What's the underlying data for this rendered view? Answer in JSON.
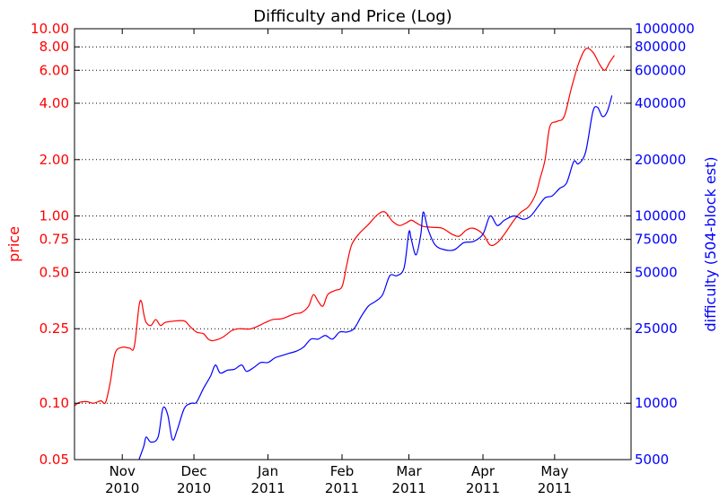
{
  "chart_data": {
    "type": "line",
    "title": "Difficulty and Price (Log)",
    "x_ticks": [
      {
        "label_top": "Nov",
        "label_bottom": "2010",
        "date": "2010-11-01"
      },
      {
        "label_top": "Dec",
        "label_bottom": "2010",
        "date": "2010-12-01"
      },
      {
        "label_top": "Jan",
        "label_bottom": "2011",
        "date": "2011-01-01"
      },
      {
        "label_top": "Feb",
        "label_bottom": "2011",
        "date": "2011-02-01"
      },
      {
        "label_top": "Mar",
        "label_bottom": "2011",
        "date": "2011-03-01"
      },
      {
        "label_top": "Apr",
        "label_bottom": "2011",
        "date": "2011-04-01"
      },
      {
        "label_top": "May",
        "label_bottom": "2011",
        "date": "2011-05-01"
      }
    ],
    "xlim": [
      "2010-10-12",
      "2011-06-02"
    ],
    "left_axis": {
      "label": "price",
      "scale": "log",
      "ylim": [
        0.05,
        10
      ],
      "color": "#ff0000",
      "ticks": [
        {
          "value": 0.05,
          "label": "0.05"
        },
        {
          "value": 0.1,
          "label": "0.10"
        },
        {
          "value": 0.25,
          "label": "0.25"
        },
        {
          "value": 0.5,
          "label": "0.50"
        },
        {
          "value": 0.75,
          "label": "0.75"
        },
        {
          "value": 1.0,
          "label": "1.00"
        },
        {
          "value": 2.0,
          "label": "2.00"
        },
        {
          "value": 4.0,
          "label": "4.00"
        },
        {
          "value": 6.0,
          "label": "6.00"
        },
        {
          "value": 8.0,
          "label": "8.00"
        },
        {
          "value": 10.0,
          "label": "10.00"
        }
      ]
    },
    "right_axis": {
      "label": "difficulty (504-block est)",
      "scale": "log",
      "ylim": [
        5000,
        1000000
      ],
      "color": "#0000ff",
      "ticks": [
        {
          "value": 5000,
          "label": "5000"
        },
        {
          "value": 10000,
          "label": "10000"
        },
        {
          "value": 25000,
          "label": "25000"
        },
        {
          "value": 50000,
          "label": "50000"
        },
        {
          "value": 75000,
          "label": "75000"
        },
        {
          "value": 100000,
          "label": "100000"
        },
        {
          "value": 200000,
          "label": "200000"
        },
        {
          "value": 400000,
          "label": "400000"
        },
        {
          "value": 600000,
          "label": "600000"
        },
        {
          "value": 800000,
          "label": "800000"
        },
        {
          "value": 1000000,
          "label": "1000000"
        }
      ]
    },
    "grid": "horizontal dotted",
    "series": [
      {
        "axis": "left",
        "color": "#ff0000",
        "points": [
          [
            "2010-10-12",
            0.097
          ],
          [
            "2010-10-14",
            0.101
          ],
          [
            "2010-10-17",
            0.102
          ],
          [
            "2010-10-20",
            0.1
          ],
          [
            "2010-10-23",
            0.103
          ],
          [
            "2010-10-25",
            0.101
          ],
          [
            "2010-10-27",
            0.13
          ],
          [
            "2010-10-29",
            0.185
          ],
          [
            "2010-11-01",
            0.199
          ],
          [
            "2010-11-04",
            0.197
          ],
          [
            "2010-11-06",
            0.2
          ],
          [
            "2010-11-08",
            0.33
          ],
          [
            "2010-11-09",
            0.35
          ],
          [
            "2010-11-10",
            0.3
          ],
          [
            "2010-11-11",
            0.27
          ],
          [
            "2010-11-13",
            0.26
          ],
          [
            "2010-11-15",
            0.28
          ],
          [
            "2010-11-17",
            0.26
          ],
          [
            "2010-11-19",
            0.27
          ],
          [
            "2010-11-23",
            0.275
          ],
          [
            "2010-11-27",
            0.275
          ],
          [
            "2010-11-29",
            0.26
          ],
          [
            "2010-12-02",
            0.24
          ],
          [
            "2010-12-05",
            0.235
          ],
          [
            "2010-12-07",
            0.22
          ],
          [
            "2010-12-09",
            0.216
          ],
          [
            "2010-12-13",
            0.225
          ],
          [
            "2010-12-17",
            0.245
          ],
          [
            "2010-12-20",
            0.25
          ],
          [
            "2010-12-25",
            0.25
          ],
          [
            "2010-12-31",
            0.27
          ],
          [
            "2011-01-03",
            0.28
          ],
          [
            "2011-01-07",
            0.283
          ],
          [
            "2011-01-12",
            0.3
          ],
          [
            "2011-01-15",
            0.305
          ],
          [
            "2011-01-18",
            0.33
          ],
          [
            "2011-01-20",
            0.38
          ],
          [
            "2011-01-22",
            0.35
          ],
          [
            "2011-01-24",
            0.33
          ],
          [
            "2011-01-26",
            0.38
          ],
          [
            "2011-01-29",
            0.4
          ],
          [
            "2011-02-01",
            0.42
          ],
          [
            "2011-02-03",
            0.55
          ],
          [
            "2011-02-05",
            0.7
          ],
          [
            "2011-02-08",
            0.8
          ],
          [
            "2011-02-12",
            0.9
          ],
          [
            "2011-02-16",
            1.02
          ],
          [
            "2011-02-19",
            1.05
          ],
          [
            "2011-02-22",
            0.94
          ],
          [
            "2011-02-25",
            0.89
          ],
          [
            "2011-02-28",
            0.92
          ],
          [
            "2011-03-02",
            0.95
          ],
          [
            "2011-03-04",
            0.92
          ],
          [
            "2011-03-07",
            0.88
          ],
          [
            "2011-03-11",
            0.87
          ],
          [
            "2011-03-15",
            0.86
          ],
          [
            "2011-03-19",
            0.8
          ],
          [
            "2011-03-22",
            0.78
          ],
          [
            "2011-03-25",
            0.84
          ],
          [
            "2011-03-28",
            0.86
          ],
          [
            "2011-04-01",
            0.8
          ],
          [
            "2011-04-04",
            0.7
          ],
          [
            "2011-04-07",
            0.72
          ],
          [
            "2011-04-10",
            0.8
          ],
          [
            "2011-04-14",
            0.95
          ],
          [
            "2011-04-17",
            1.05
          ],
          [
            "2011-04-20",
            1.12
          ],
          [
            "2011-04-23",
            1.3
          ],
          [
            "2011-04-25",
            1.6
          ],
          [
            "2011-04-27",
            2.0
          ],
          [
            "2011-04-29",
            3.0
          ],
          [
            "2011-05-02",
            3.2
          ],
          [
            "2011-05-05",
            3.4
          ],
          [
            "2011-05-08",
            4.8
          ],
          [
            "2011-05-11",
            6.5
          ],
          [
            "2011-05-14",
            7.8
          ],
          [
            "2011-05-17",
            7.5
          ],
          [
            "2011-05-20",
            6.4
          ],
          [
            "2011-05-22",
            6.0
          ],
          [
            "2011-05-24",
            6.6
          ],
          [
            "2011-05-26",
            7.2
          ]
        ]
      },
      {
        "axis": "right",
        "color": "#0000ff",
        "points": [
          [
            "2010-11-08",
            5000
          ],
          [
            "2010-11-10",
            5900
          ],
          [
            "2010-11-11",
            6600
          ],
          [
            "2010-11-13",
            6200
          ],
          [
            "2010-11-16",
            6600
          ],
          [
            "2010-11-18",
            9400
          ],
          [
            "2010-11-20",
            8700
          ],
          [
            "2010-11-22",
            6400
          ],
          [
            "2010-11-24",
            7200
          ],
          [
            "2010-11-27",
            9400
          ],
          [
            "2010-11-30",
            10000
          ],
          [
            "2010-12-02",
            10100
          ],
          [
            "2010-12-05",
            12000
          ],
          [
            "2010-12-08",
            14000
          ],
          [
            "2010-12-10",
            16000
          ],
          [
            "2010-12-12",
            14500
          ],
          [
            "2010-12-15",
            15000
          ],
          [
            "2010-12-18",
            15200
          ],
          [
            "2010-12-21",
            16000
          ],
          [
            "2010-12-23",
            14800
          ],
          [
            "2010-12-26",
            15500
          ],
          [
            "2010-12-29",
            16500
          ],
          [
            "2011-01-01",
            16500
          ],
          [
            "2011-01-04",
            17500
          ],
          [
            "2011-01-07",
            18000
          ],
          [
            "2011-01-10",
            18500
          ],
          [
            "2011-01-13",
            19000
          ],
          [
            "2011-01-16",
            20000
          ],
          [
            "2011-01-19",
            22000
          ],
          [
            "2011-01-22",
            22000
          ],
          [
            "2011-01-25",
            23000
          ],
          [
            "2011-01-28",
            22000
          ],
          [
            "2011-01-31",
            24000
          ],
          [
            "2011-02-03",
            24000
          ],
          [
            "2011-02-06",
            25000
          ],
          [
            "2011-02-09",
            29000
          ],
          [
            "2011-02-12",
            33000
          ],
          [
            "2011-02-15",
            35000
          ],
          [
            "2011-02-18",
            38000
          ],
          [
            "2011-02-21",
            48000
          ],
          [
            "2011-02-24",
            48000
          ],
          [
            "2011-02-27",
            53000
          ],
          [
            "2011-03-01",
            82000
          ],
          [
            "2011-03-02",
            75000
          ],
          [
            "2011-03-04",
            62000
          ],
          [
            "2011-03-06",
            80000
          ],
          [
            "2011-03-07",
            105000
          ],
          [
            "2011-03-09",
            85000
          ],
          [
            "2011-03-12",
            70000
          ],
          [
            "2011-03-16",
            66000
          ],
          [
            "2011-03-20",
            66000
          ],
          [
            "2011-03-24",
            72000
          ],
          [
            "2011-03-28",
            73000
          ],
          [
            "2011-04-01",
            80000
          ],
          [
            "2011-04-04",
            100000
          ],
          [
            "2011-04-07",
            89000
          ],
          [
            "2011-04-10",
            95000
          ],
          [
            "2011-04-14",
            100000
          ],
          [
            "2011-04-18",
            96000
          ],
          [
            "2011-04-21",
            100000
          ],
          [
            "2011-04-24",
            112000
          ],
          [
            "2011-04-27",
            125000
          ],
          [
            "2011-04-30",
            128000
          ],
          [
            "2011-05-03",
            140000
          ],
          [
            "2011-05-06",
            150000
          ],
          [
            "2011-05-09",
            195000
          ],
          [
            "2011-05-11",
            190000
          ],
          [
            "2011-05-14",
            220000
          ],
          [
            "2011-05-17",
            360000
          ],
          [
            "2011-05-19",
            380000
          ],
          [
            "2011-05-21",
            340000
          ],
          [
            "2011-05-23",
            360000
          ],
          [
            "2011-05-25",
            440000
          ]
        ]
      }
    ]
  }
}
